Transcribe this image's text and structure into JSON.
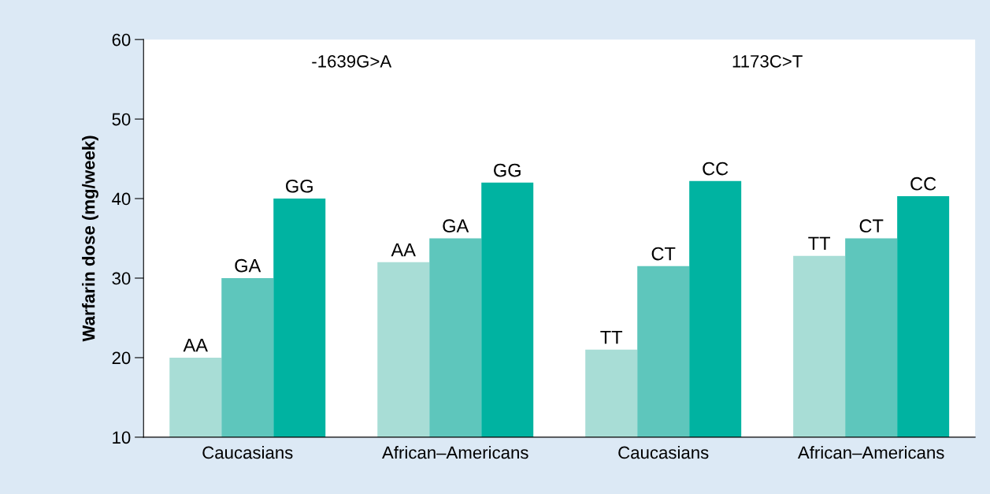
{
  "chart_data": {
    "type": "bar",
    "ylabel": "Warfarin dose (mg/week)",
    "categories": [
      "Caucasians",
      "African–Americans",
      "Caucasians",
      "African–Americans"
    ],
    "series": [
      {
        "color": "#a8ddd6",
        "values": [
          20,
          32,
          21,
          32.8
        ],
        "value_labels": [
          "AA",
          "AA",
          "TT",
          "TT"
        ]
      },
      {
        "color": "#5ec6bc",
        "values": [
          30,
          35,
          31.5,
          35
        ],
        "value_labels": [
          "GA",
          "GA",
          "CT",
          "CT"
        ]
      },
      {
        "color": "#00b3a1",
        "values": [
          40,
          42,
          42.2,
          40.3
        ],
        "value_labels": [
          "GG",
          "GG",
          "CC",
          "CC"
        ]
      }
    ],
    "ylim": [
      10,
      60
    ],
    "yticks": [
      10,
      20,
      30,
      40,
      50,
      60
    ],
    "annotations": [
      "-1639G>A",
      "1173C>T"
    ],
    "grid": false,
    "legend": false
  }
}
